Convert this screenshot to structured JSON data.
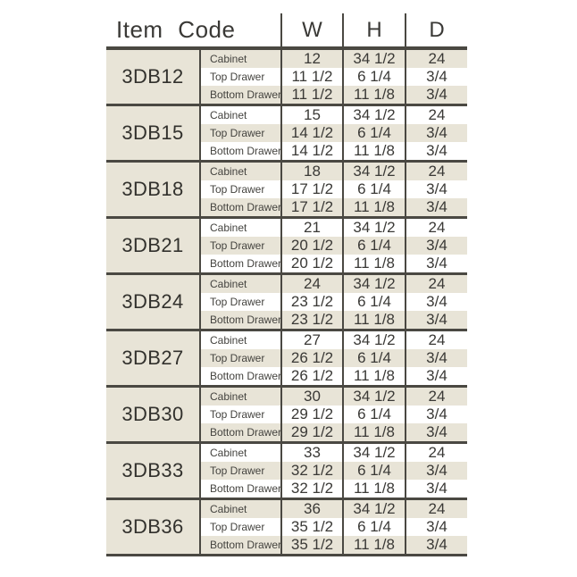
{
  "table": {
    "header": {
      "item_code_label": "Item Code",
      "columns": [
        "W",
        "H",
        "D"
      ]
    },
    "groups": [
      {
        "code": "3DB12",
        "rows": [
          {
            "label": "Cabinet",
            "w": "12",
            "h": "34 1/2",
            "d": "24"
          },
          {
            "label": "Top Drawer",
            "w": "11 1/2",
            "h": "6 1/4",
            "d": "3/4"
          },
          {
            "label": "Bottom Drawer",
            "w": "11 1/2",
            "h": "11 1/8",
            "d": "3/4"
          }
        ]
      },
      {
        "code": "3DB15",
        "rows": [
          {
            "label": "Cabinet",
            "w": "15",
            "h": "34 1/2",
            "d": "24"
          },
          {
            "label": "Top Drawer",
            "w": "14 1/2",
            "h": "6 1/4",
            "d": "3/4"
          },
          {
            "label": "Bottom Drawer",
            "w": "14 1/2",
            "h": "11 1/8",
            "d": "3/4"
          }
        ]
      },
      {
        "code": "3DB18",
        "rows": [
          {
            "label": "Cabinet",
            "w": "18",
            "h": "34 1/2",
            "d": "24"
          },
          {
            "label": "Top Drawer",
            "w": "17 1/2",
            "h": "6 1/4",
            "d": "3/4"
          },
          {
            "label": "Bottom Drawer",
            "w": "17 1/2",
            "h": "11 1/8",
            "d": "3/4"
          }
        ]
      },
      {
        "code": "3DB21",
        "rows": [
          {
            "label": "Cabinet",
            "w": "21",
            "h": "34 1/2",
            "d": "24"
          },
          {
            "label": "Top Drawer",
            "w": "20 1/2",
            "h": "6 1/4",
            "d": "3/4"
          },
          {
            "label": "Bottom Drawer",
            "w": "20 1/2",
            "h": "11 1/8",
            "d": "3/4"
          }
        ]
      },
      {
        "code": "3DB24",
        "rows": [
          {
            "label": "Cabinet",
            "w": "24",
            "h": "34 1/2",
            "d": "24"
          },
          {
            "label": "Top Drawer",
            "w": "23 1/2",
            "h": "6 1/4",
            "d": "3/4"
          },
          {
            "label": "Bottom Drawer",
            "w": "23 1/2",
            "h": "11 1/8",
            "d": "3/4"
          }
        ]
      },
      {
        "code": "3DB27",
        "rows": [
          {
            "label": "Cabinet",
            "w": "27",
            "h": "34 1/2",
            "d": "24"
          },
          {
            "label": "Top Drawer",
            "w": "26 1/2",
            "h": "6 1/4",
            "d": "3/4"
          },
          {
            "label": "Bottom Drawer",
            "w": "26 1/2",
            "h": "11 1/8",
            "d": "3/4"
          }
        ]
      },
      {
        "code": "3DB30",
        "rows": [
          {
            "label": "Cabinet",
            "w": "30",
            "h": "34 1/2",
            "d": "24"
          },
          {
            "label": "Top Drawer",
            "w": "29 1/2",
            "h": "6 1/4",
            "d": "3/4"
          },
          {
            "label": "Bottom Drawer",
            "w": "29 1/2",
            "h": "11 1/8",
            "d": "3/4"
          }
        ]
      },
      {
        "code": "3DB33",
        "rows": [
          {
            "label": "Cabinet",
            "w": "33",
            "h": "34 1/2",
            "d": "24"
          },
          {
            "label": "Top Drawer",
            "w": "32 1/2",
            "h": "6 1/4",
            "d": "3/4"
          },
          {
            "label": "Bottom Drawer",
            "w": "32 1/2",
            "h": "11 1/8",
            "d": "3/4"
          }
        ]
      },
      {
        "code": "3DB36",
        "rows": [
          {
            "label": "Cabinet",
            "w": "36",
            "h": "34 1/2",
            "d": "24"
          },
          {
            "label": "Top Drawer",
            "w": "35 1/2",
            "h": "6 1/4",
            "d": "3/4"
          },
          {
            "label": "Bottom Drawer",
            "w": "35 1/2",
            "h": "11 1/8",
            "d": "3/4"
          }
        ]
      }
    ],
    "colors": {
      "beige": "#e8e4d7",
      "white": "#ffffff",
      "border": "#4a4842",
      "text": "#3a3936"
    }
  }
}
